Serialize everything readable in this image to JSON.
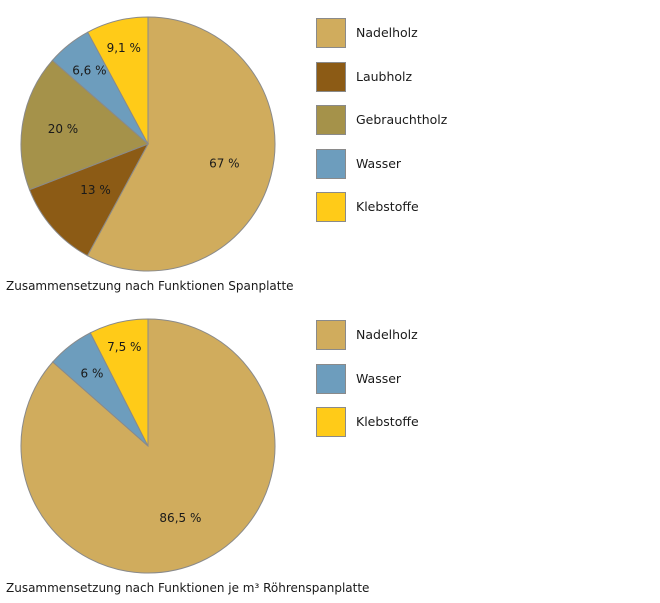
{
  "chart_data": [
    {
      "type": "pie",
      "title": "Zusammensetzung nach Funktionen Spanplatte",
      "categories": [
        "Nadelholz",
        "Laubholz",
        "Gebrauchtholz",
        "Wasser",
        "Klebstoffe"
      ],
      "values": [
        67,
        13,
        20,
        6.6,
        9.1
      ],
      "value_labels": [
        "67 %",
        "13 %",
        "20 %",
        "6,6 %",
        "9,1 %"
      ],
      "colors": [
        "#d0ac5d",
        "#8c5b15",
        "#a5924a",
        "#6d9dbd",
        "#ffcb18"
      ],
      "legend_position": "right"
    },
    {
      "type": "pie",
      "title": "Zusammensetzung nach Funktionen je m³ Röhrenspanplatte",
      "categories": [
        "Nadelholz",
        "Wasser",
        "Klebstoffe"
      ],
      "values": [
        86.5,
        6,
        7.5
      ],
      "value_labels": [
        "86,5 %",
        "6 %",
        "7,5 %"
      ],
      "colors": [
        "#d0ac5d",
        "#6d9dbd",
        "#ffcb18"
      ],
      "legend_position": "right"
    }
  ]
}
